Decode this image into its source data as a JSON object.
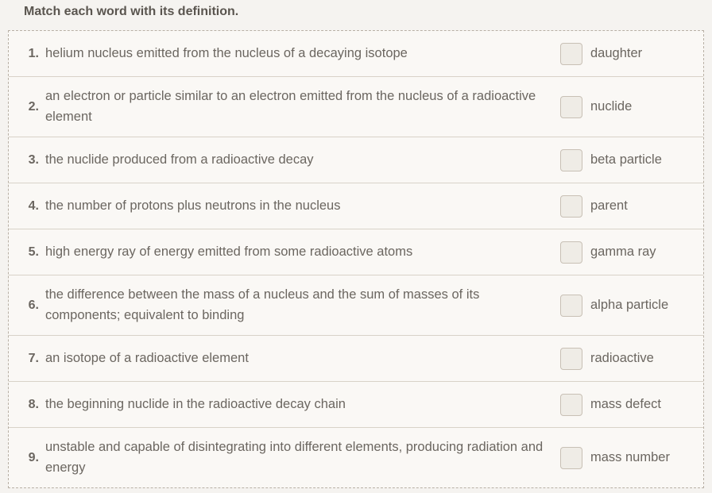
{
  "instruction": "Match each word with its definition.",
  "rows": [
    {
      "num": "1.",
      "definition": "helium nucleus emitted from the nucleus of a decaying isotope",
      "term": "daughter"
    },
    {
      "num": "2.",
      "definition": "an electron or particle similar to an electron emitted from the nucleus of a radioactive element",
      "term": "nuclide"
    },
    {
      "num": "3.",
      "definition": "the nuclide produced from a radioactive decay",
      "term": "beta particle"
    },
    {
      "num": "4.",
      "definition": "the number of protons plus neutrons in the nucleus",
      "term": "parent"
    },
    {
      "num": "5.",
      "definition": "high energy ray of energy emitted from some radioactive atoms",
      "term": "gamma ray"
    },
    {
      "num": "6.",
      "definition": "the difference between the mass of a nucleus and the sum of masses of its components; equivalent to binding",
      "term": "alpha particle"
    },
    {
      "num": "7.",
      "definition": "an isotope of a radioactive element",
      "term": "radioactive"
    },
    {
      "num": "8.",
      "definition": "the beginning nuclide in the radioactive decay chain",
      "term": "mass defect"
    },
    {
      "num": "9.",
      "definition": "unstable and capable of disintegrating into different elements, producing radiation and energy",
      "term": "mass number"
    }
  ],
  "style": {
    "background_color": "#f5f3f0",
    "panel_background": "#faf8f5",
    "border_color": "#d8d2c8",
    "dashed_border_color": "#b8b0a5",
    "text_color": "#6b6660",
    "instruction_color": "#5a554f",
    "dropzone_bg": "#efece6",
    "dropzone_border": "#c8c0b5",
    "font_size_body": 16.5,
    "font_size_instruction": 16,
    "line_height": 1.55
  }
}
